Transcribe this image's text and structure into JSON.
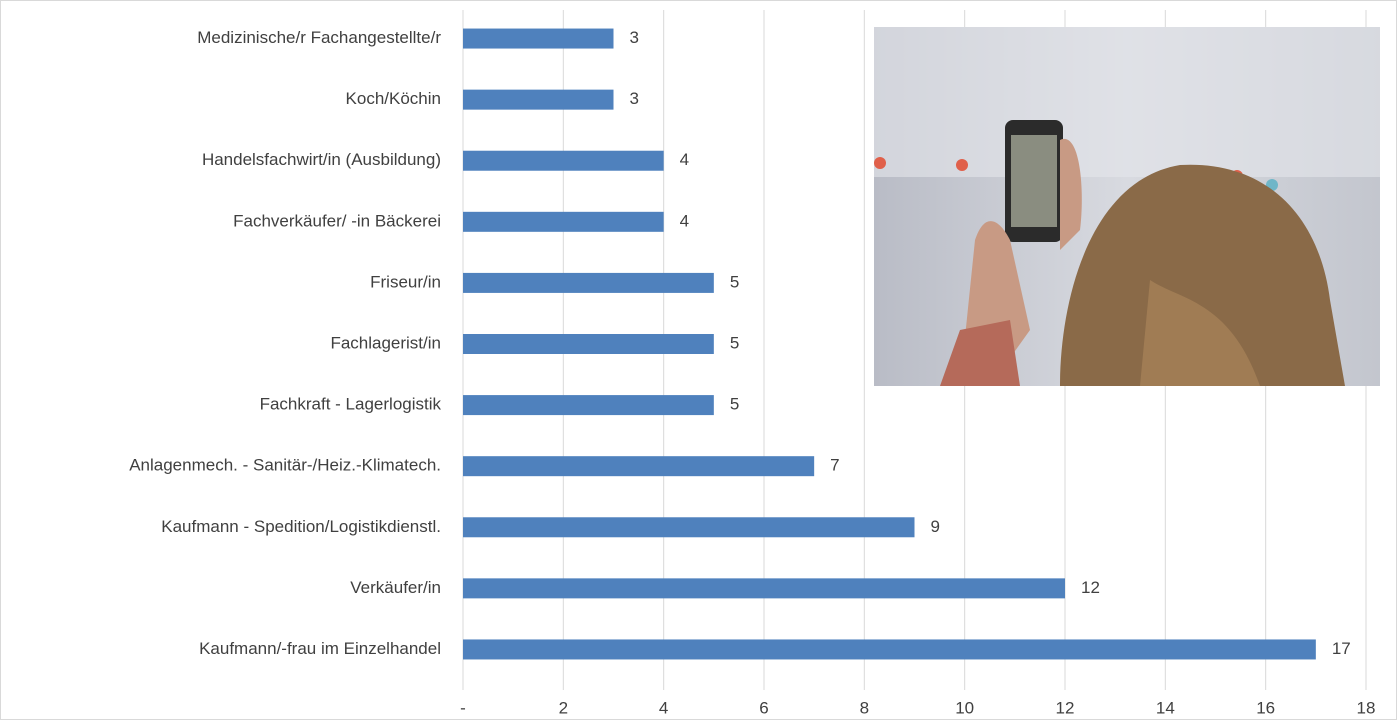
{
  "chart_data": {
    "type": "bar",
    "orientation": "horizontal",
    "categories": [
      "Medizinische/r Fachangestellte/r",
      "Koch/Köchin",
      "Handelsfachwirt/in (Ausbildung)",
      "Fachverkäufer/ -in Bäckerei",
      "Friseur/in",
      "Fachlagerist/in",
      "Fachkraft - Lagerlogistik",
      "Anlagenmech. - Sanitär-/Heiz.-Klimatech.",
      "Kaufmann - Spedition/Logistikdienstl.",
      "Verkäufer/in",
      "Kaufmann/-frau im Einzelhandel"
    ],
    "values": [
      3,
      3,
      4,
      4,
      5,
      5,
      5,
      7,
      9,
      12,
      17
    ],
    "color": "#4f81bd",
    "xlim": [
      0,
      18
    ],
    "xticks": [
      {
        "value": 0,
        "label": "-"
      },
      2,
      4,
      6,
      8,
      10,
      12,
      14,
      16,
      18
    ],
    "grid": true
  }
}
